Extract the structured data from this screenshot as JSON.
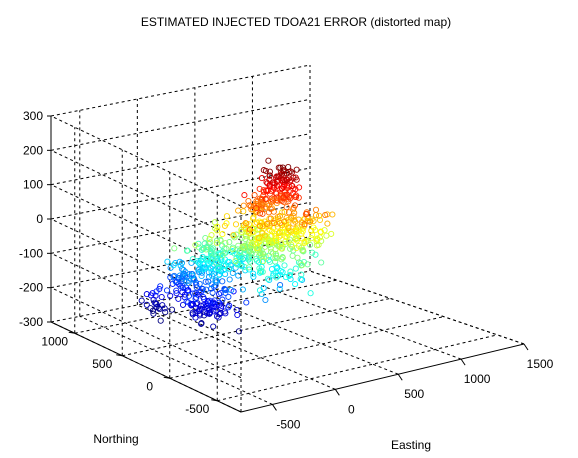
{
  "chart_data": {
    "type": "scatter",
    "title": "ESTIMATED INJECTED TDOA21 ERROR (distorted map)",
    "xlabel": "Easting",
    "ylabel": "Northing",
    "zlabel": "",
    "projection": "3d",
    "grid": true,
    "colormap": "jet",
    "marker": "open-circle",
    "x_ticks": [
      "-500",
      "0",
      "500",
      "1000",
      "1500"
    ],
    "y_ticks": [
      "-500",
      "0",
      "500",
      "1000"
    ],
    "z_ticks": [
      "-300",
      "-200",
      "-100",
      "0",
      "100",
      "200",
      "300"
    ],
    "xlim": [
      -750,
      1500
    ],
    "ylim": [
      -750,
      1250
    ],
    "zlim": [
      -300,
      300
    ],
    "clusters": [
      {
        "x": 250,
        "y": 100,
        "z": 170,
        "sx": 60,
        "sy": 60,
        "sz": 30,
        "count": 110
      },
      {
        "x": 160,
        "y": 200,
        "z": 110,
        "sx": 40,
        "sy": 30,
        "sz": 15,
        "count": 35
      },
      {
        "x": 120,
        "y": 0,
        "z": 60,
        "sx": 110,
        "sy": 130,
        "sz": 40,
        "count": 120
      },
      {
        "x": 40,
        "y": 100,
        "z": 0,
        "sx": 130,
        "sy": 160,
        "sz": 50,
        "count": 220
      },
      {
        "x": 300,
        "y": -100,
        "z": 40,
        "sx": 90,
        "sy": 80,
        "sz": 40,
        "count": 60
      },
      {
        "x": -100,
        "y": 350,
        "z": -60,
        "sx": 100,
        "sy": 110,
        "sz": 40,
        "count": 130
      },
      {
        "x": -150,
        "y": 550,
        "z": -130,
        "sx": 70,
        "sy": 70,
        "sz": 30,
        "count": 70
      },
      {
        "x": -200,
        "y": 300,
        "z": -170,
        "sx": 70,
        "sy": 90,
        "sz": 25,
        "count": 80
      },
      {
        "x": -320,
        "y": 650,
        "z": -200,
        "sx": 40,
        "sy": 50,
        "sz": 20,
        "count": 25
      }
    ]
  }
}
